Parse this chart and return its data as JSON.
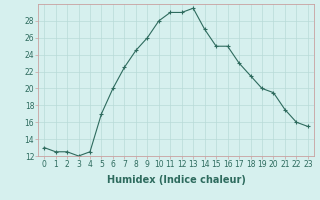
{
  "x": [
    0,
    1,
    2,
    3,
    4,
    5,
    6,
    7,
    8,
    9,
    10,
    11,
    12,
    13,
    14,
    15,
    16,
    17,
    18,
    19,
    20,
    21,
    22,
    23
  ],
  "y": [
    13,
    12.5,
    12.5,
    12,
    12.5,
    17,
    20,
    22.5,
    24.5,
    26,
    28,
    29,
    29,
    29.5,
    27,
    25,
    25,
    23,
    21.5,
    20,
    19.5,
    17.5,
    16,
    15.5
  ],
  "line_color": "#2e6b5e",
  "marker": "+",
  "marker_size": 3,
  "marker_linewidth": 0.8,
  "line_width": 0.8,
  "background_color": "#d6f0ee",
  "grid_color": "#b8dbd8",
  "xlabel": "Humidex (Indice chaleur)",
  "ylim": [
    12,
    30
  ],
  "xlim": [
    -0.5,
    23.5
  ],
  "yticks": [
    12,
    14,
    16,
    18,
    20,
    22,
    24,
    26,
    28
  ],
  "xticks": [
    0,
    1,
    2,
    3,
    4,
    5,
    6,
    7,
    8,
    9,
    10,
    11,
    12,
    13,
    14,
    15,
    16,
    17,
    18,
    19,
    20,
    21,
    22,
    23
  ],
  "tick_label_fontsize": 5.5,
  "xlabel_fontsize": 7,
  "border_color": "#c8a0a0",
  "spine_linewidth": 0.6
}
